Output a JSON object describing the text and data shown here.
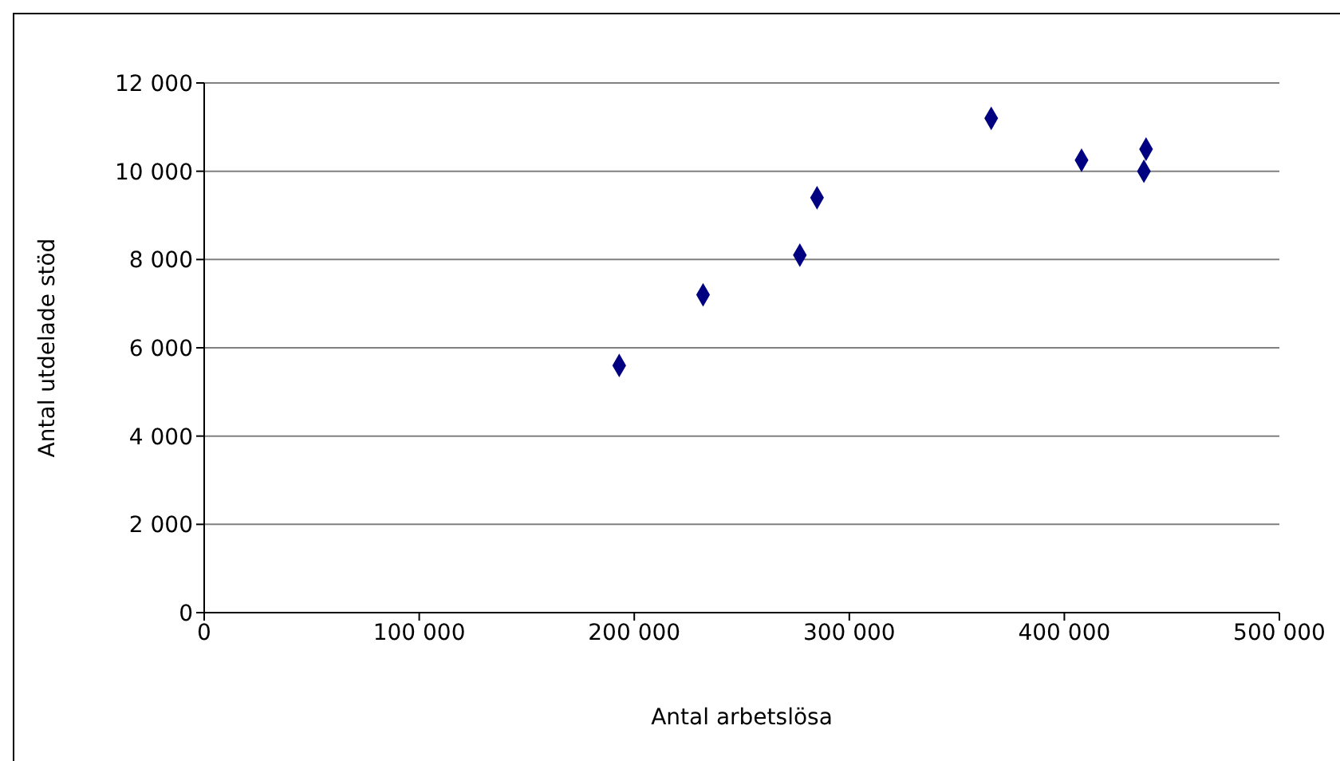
{
  "chart_data": {
    "type": "scatter",
    "xlabel": "Antal arbetslösa",
    "ylabel": "Antal utdelade stöd",
    "x": [
      193000,
      232000,
      277000,
      285000,
      366000,
      408000,
      437000,
      438000
    ],
    "series": [
      {
        "color": "#000080",
        "values": [
          5600,
          7200,
          8100,
          9400,
          11200,
          10250,
          10000,
          10500
        ]
      }
    ],
    "xlim": [
      0,
      500000
    ],
    "xticks": [
      0,
      {
        "value": 100000,
        "label": "100 000"
      },
      {
        "value": 200000,
        "label": "200 000"
      },
      {
        "value": 300000,
        "label": "300 000"
      },
      {
        "value": 400000,
        "label": "400 000"
      },
      {
        "value": 500000,
        "label": "500 000"
      }
    ],
    "ylim": [
      0,
      12000
    ],
    "yticks": [
      0,
      {
        "value": 2000,
        "label": "2 000"
      },
      {
        "value": 4000,
        "label": "4 000"
      },
      {
        "value": 6000,
        "label": "6 000"
      },
      {
        "value": 8000,
        "label": "8 000"
      },
      {
        "value": 10000,
        "label": "10 000"
      },
      {
        "value": 12000,
        "label": "12 000"
      }
    ],
    "grid": "y",
    "marker": "diamond",
    "legend": false
  }
}
